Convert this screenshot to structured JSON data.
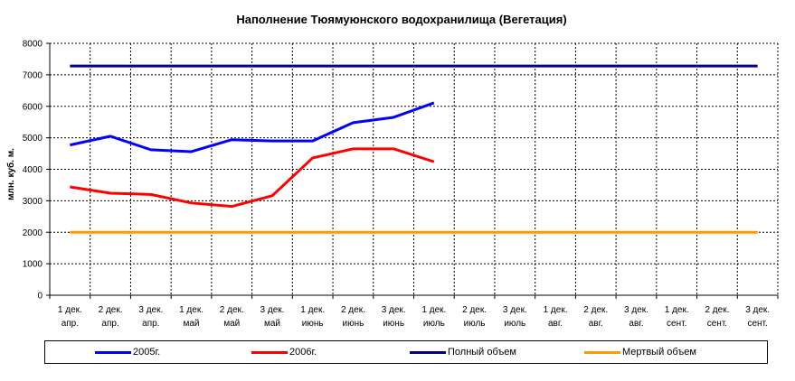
{
  "chart_data": {
    "type": "line",
    "title": "Наполнение Тюямуюнского водохранилища (Вегетация)",
    "ylabel": "млн. куб. м.",
    "xlabel": "",
    "ylim": [
      0,
      8000
    ],
    "yticks": [
      "0",
      "1000",
      "2000",
      "3000",
      "4000",
      "5000",
      "6000",
      "7000",
      "8000"
    ],
    "grid": true,
    "legend_position": "bottom",
    "categories": [
      {
        "line1": "1 дек.",
        "line2": "апр."
      },
      {
        "line1": "2 дек.",
        "line2": "апр."
      },
      {
        "line1": "3 дек.",
        "line2": "апр."
      },
      {
        "line1": "1 дек.",
        "line2": "май"
      },
      {
        "line1": "2 дек.",
        "line2": "май"
      },
      {
        "line1": "3 дек.",
        "line2": "май"
      },
      {
        "line1": "1 дек.",
        "line2": "июнь"
      },
      {
        "line1": "2 дек.",
        "line2": "июнь"
      },
      {
        "line1": "3 дек.",
        "line2": "июнь"
      },
      {
        "line1": "1 дек.",
        "line2": "июль"
      },
      {
        "line1": "2 дек.",
        "line2": "июль"
      },
      {
        "line1": "3 дек.",
        "line2": "июль"
      },
      {
        "line1": "1 дек.",
        "line2": "авг."
      },
      {
        "line1": "2 дек.",
        "line2": "авг."
      },
      {
        "line1": "3 дек.",
        "line2": "авг."
      },
      {
        "line1": "1 дек.",
        "line2": "сент."
      },
      {
        "line1": "2 дек.",
        "line2": "сент."
      },
      {
        "line1": "3 дек.",
        "line2": "сент."
      }
    ],
    "series": [
      {
        "name": "2005г.",
        "color": "#0000ff",
        "values": [
          4770,
          5050,
          4620,
          4560,
          4940,
          4900,
          4900,
          5480,
          5650,
          6110,
          null,
          null,
          null,
          null,
          null,
          null,
          null,
          null
        ]
      },
      {
        "name": "2006г.",
        "color": "#ff0000",
        "values": [
          3440,
          3240,
          3200,
          2930,
          2820,
          3160,
          4360,
          4650,
          4650,
          4240,
          null,
          null,
          null,
          null,
          null,
          null,
          null,
          null
        ]
      },
      {
        "name": "Полный объем",
        "color": "#000080",
        "values": [
          7280,
          7280,
          7280,
          7280,
          7280,
          7280,
          7280,
          7280,
          7280,
          7280,
          7280,
          7280,
          7280,
          7280,
          7280,
          7280,
          7280,
          7280
        ]
      },
      {
        "name": "Мертвый объем",
        "color": "#ff9900",
        "values": [
          2000,
          2000,
          2000,
          2000,
          2000,
          2000,
          2000,
          2000,
          2000,
          2000,
          2000,
          2000,
          2000,
          2000,
          2000,
          2000,
          2000,
          2000
        ]
      }
    ]
  }
}
